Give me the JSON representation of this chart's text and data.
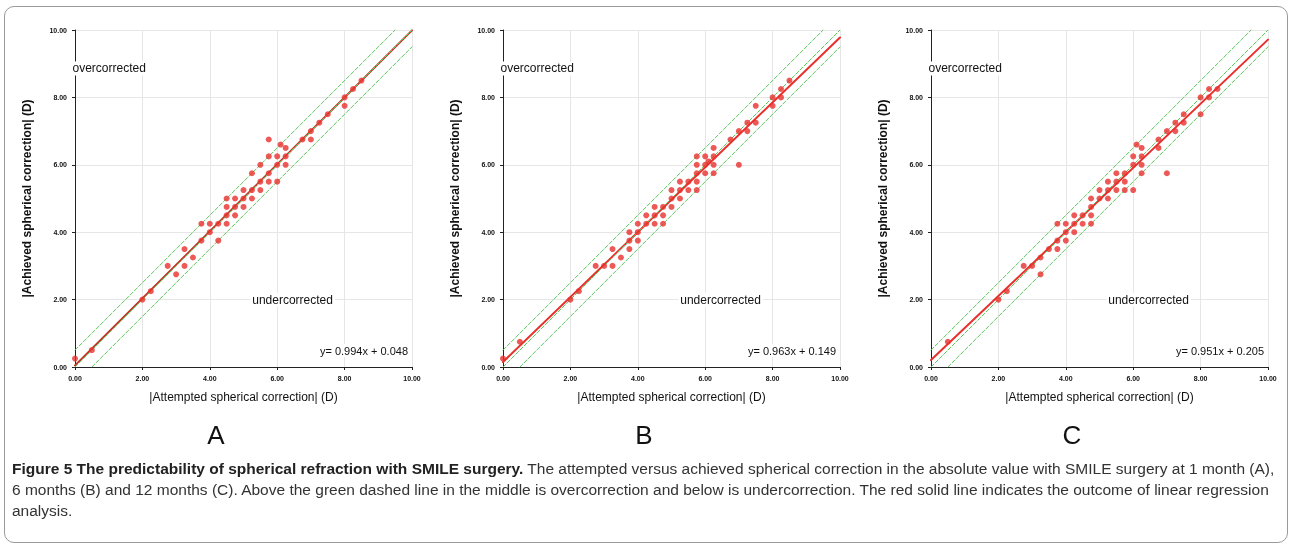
{
  "chart_data": [
    {
      "type": "scatter",
      "title": "A",
      "xlabel": "|Attempted spherical correction| (D)",
      "ylabel": "|Achieved spherical correction| (D)",
      "xlim": [
        0,
        10
      ],
      "ylim": [
        0,
        10
      ],
      "xticks": [
        {
          "value": 0,
          "label": "0.00"
        },
        {
          "value": 2,
          "label": "2.00"
        },
        {
          "value": 4,
          "label": "4.00"
        },
        {
          "value": 6,
          "label": "6.00"
        },
        {
          "value": 8,
          "label": "8.00"
        },
        {
          "value": 10,
          "label": "10.00"
        }
      ],
      "yticks": [
        {
          "value": 0,
          "label": "0.00"
        },
        {
          "value": 2,
          "label": "2.00"
        },
        {
          "value": 4,
          "label": "4.00"
        },
        {
          "value": 6,
          "label": "6.00"
        },
        {
          "value": 8,
          "label": "8.00"
        },
        {
          "value": 10,
          "label": "10.00"
        }
      ],
      "grid": true,
      "annotations": [
        "overcorrected",
        "undercorrected",
        "y= 0.994x + 0.048",
        "Figure 5 The predictability of spherical refraction with SMILE surgery.",
        "The attempted versus achieved spherical correction in the absolute value with SMILE surgery at 1 month (A), 6 months (B) and 12 months (C). Above the green dashed line in the middle is overcorrection and below is undercorrection. The red solid line indicates the outcome of linear regression analysis."
      ],
      "series": [
        {
          "type": "scatter",
          "marker": "circle",
          "color": "#e8302c",
          "x": [
            0,
            0.5,
            2,
            2.25,
            2.75,
            3,
            3.25,
            3.25,
            3.5,
            3.75,
            3.75,
            4,
            4,
            4.25,
            4.25,
            4.5,
            4.5,
            4.5,
            4.5,
            4.75,
            4.75,
            4.75,
            5,
            5,
            5,
            5.25,
            5.25,
            5.25,
            5.5,
            5.5,
            5.5,
            5.75,
            5.75,
            5.75,
            5.75,
            6,
            6,
            6,
            6.1,
            6.25,
            6.25,
            6.25,
            6.75,
            7,
            7,
            7.25,
            7.5,
            8,
            8,
            8.25,
            8.5
          ],
          "values": [
            0.25,
            0.5,
            2,
            2.25,
            3,
            2.75,
            3,
            3.5,
            3.25,
            3.75,
            4.25,
            4.25,
            4,
            3.75,
            4.25,
            4.25,
            4.5,
            4.75,
            5,
            4.5,
            4.75,
            5,
            4.75,
            5,
            5.25,
            5,
            5.25,
            5.75,
            5.25,
            5.5,
            6,
            5.5,
            5.75,
            6.25,
            6.75,
            5.5,
            6,
            6.25,
            6.6,
            6.5,
            6.25,
            6,
            6.75,
            6.75,
            7,
            7.25,
            7.5,
            8,
            7.75,
            8.25,
            8.5
          ]
        },
        {
          "type": "line",
          "marker": "none",
          "line_style": "solid",
          "color": "#c0392b",
          "x": [
            0,
            10
          ],
          "values": [
            0.048,
            9.988
          ]
        },
        {
          "type": "line",
          "marker": "none",
          "line_style": "dashed",
          "color": "#5cc85c",
          "x": [
            0,
            9.5
          ],
          "values": [
            0.5,
            10
          ]
        },
        {
          "type": "line",
          "marker": "none",
          "line_style": "dashed",
          "color": "#5cc85c",
          "x": [
            0,
            10
          ],
          "values": [
            0,
            10
          ]
        },
        {
          "type": "line",
          "marker": "none",
          "line_style": "dashed",
          "color": "#5cc85c",
          "x": [
            0.5,
            10
          ],
          "values": [
            0,
            9.5
          ]
        }
      ]
    },
    {
      "type": "scatter",
      "title": "B",
      "xlabel": "|Attempted spherical correction| (D)",
      "ylabel": "|Achieved spherical correction| (D)",
      "xlim": [
        0,
        10
      ],
      "ylim": [
        0,
        10
      ],
      "xticks": [
        {
          "value": 0,
          "label": "0.00"
        },
        {
          "value": 2,
          "label": "2.00"
        },
        {
          "value": 4,
          "label": "4.00"
        },
        {
          "value": 6,
          "label": "6.00"
        },
        {
          "value": 8,
          "label": "8.00"
        },
        {
          "value": 10,
          "label": "10.00"
        }
      ],
      "yticks": [
        {
          "value": 0,
          "label": "0.00"
        },
        {
          "value": 2,
          "label": "2.00"
        },
        {
          "value": 4,
          "label": "4.00"
        },
        {
          "value": 6,
          "label": "6.00"
        },
        {
          "value": 8,
          "label": "8.00"
        },
        {
          "value": 10,
          "label": "10.00"
        }
      ],
      "grid": true,
      "annotations": [
        "overcorrected",
        "undercorrected",
        "y= 0.963x + 0.149"
      ],
      "series": [
        {
          "type": "scatter",
          "marker": "circle",
          "color": "#e8302c",
          "x": [
            0,
            0.5,
            2,
            2.25,
            2.75,
            3,
            3.25,
            3.25,
            3.5,
            3.75,
            3.75,
            3.75,
            4,
            4,
            4,
            4.25,
            4.25,
            4.5,
            4.5,
            4.5,
            4.75,
            4.75,
            4.75,
            5,
            5,
            5,
            5.25,
            5.25,
            5.25,
            5.5,
            5.5,
            5.75,
            5.75,
            5.75,
            5.75,
            5.75,
            6,
            6,
            6,
            6.1,
            6.25,
            6.25,
            6.25,
            6.25,
            6.75,
            7,
            7,
            7.25,
            7.25,
            7.5,
            7.5,
            8,
            8,
            8.25,
            8.25,
            8.5
          ],
          "values": [
            0.25,
            0.75,
            2,
            2.25,
            3,
            3,
            3.5,
            3,
            3.25,
            4,
            3.75,
            3.5,
            4.25,
            4,
            3.75,
            4.5,
            4.25,
            4.75,
            4.5,
            4.25,
            4.75,
            4.5,
            4.25,
            5.25,
            5,
            4.75,
            5.5,
            5.25,
            5,
            5.5,
            5.25,
            6.25,
            6,
            5.75,
            5.5,
            5.25,
            6.25,
            6,
            5.75,
            6.1,
            6.5,
            6.25,
            6,
            5.75,
            6.75,
            7,
            6,
            7.25,
            7,
            7.75,
            7.25,
            8,
            7.75,
            8.25,
            8,
            8.5
          ]
        },
        {
          "type": "line",
          "marker": "none",
          "line_style": "solid",
          "color": "#e8302c",
          "x": [
            0,
            10
          ],
          "values": [
            0.149,
            9.779
          ]
        },
        {
          "type": "line",
          "marker": "none",
          "line_style": "dashed",
          "color": "#5cc85c",
          "x": [
            0,
            9.5
          ],
          "values": [
            0.5,
            10
          ]
        },
        {
          "type": "line",
          "marker": "none",
          "line_style": "dashed",
          "color": "#5cc85c",
          "x": [
            0,
            10
          ],
          "values": [
            0,
            10
          ]
        },
        {
          "type": "line",
          "marker": "none",
          "line_style": "dashed",
          "color": "#5cc85c",
          "x": [
            0.5,
            10
          ],
          "values": [
            0,
            9.5
          ]
        }
      ]
    },
    {
      "type": "scatter",
      "title": "C",
      "xlabel": "|Attempted spherical correction| (D)",
      "ylabel": "|Achieved spherical correction| (D)",
      "xlim": [
        0,
        10
      ],
      "ylim": [
        0,
        10
      ],
      "xticks": [
        {
          "value": 0,
          "label": "0.00"
        },
        {
          "value": 2,
          "label": "2.00"
        },
        {
          "value": 4,
          "label": "4.00"
        },
        {
          "value": 6,
          "label": "6.00"
        },
        {
          "value": 8,
          "label": "8.00"
        },
        {
          "value": 10,
          "label": "10.00"
        }
      ],
      "yticks": [
        {
          "value": 0,
          "label": "0.00"
        },
        {
          "value": 2,
          "label": "2.00"
        },
        {
          "value": 4,
          "label": "4.00"
        },
        {
          "value": 6,
          "label": "6.00"
        },
        {
          "value": 8,
          "label": "8.00"
        },
        {
          "value": 10,
          "label": "10.00"
        }
      ],
      "grid": true,
      "annotations": [
        "overcorrected",
        "undercorrected",
        "y= 0.951x + 0.205"
      ],
      "series": [
        {
          "type": "scatter",
          "marker": "circle",
          "color": "#e8302c",
          "x": [
            0.5,
            2,
            2.25,
            2.75,
            3,
            3.25,
            3.25,
            3.5,
            3.75,
            3.75,
            3.75,
            4,
            4,
            4,
            4.25,
            4.25,
            4.25,
            4.5,
            4.5,
            4.75,
            4.75,
            4.75,
            4.75,
            5,
            5,
            5.25,
            5.25,
            5.25,
            5.5,
            5.5,
            5.5,
            5.75,
            5.75,
            5.75,
            6,
            6,
            6,
            6.1,
            6.25,
            6.25,
            6.25,
            6.25,
            6.75,
            6.75,
            7,
            7,
            7.25,
            7.25,
            7.5,
            7.5,
            8,
            8,
            8.25,
            8.25,
            8.5
          ],
          "values": [
            0.75,
            2,
            2.25,
            3,
            3,
            2.75,
            3.25,
            3.5,
            4.25,
            3.75,
            3.5,
            4.25,
            4,
            3.75,
            4.5,
            4.25,
            4,
            4.5,
            4.25,
            5,
            4.75,
            4.5,
            4.25,
            5.25,
            5,
            5.5,
            5.25,
            5,
            5.75,
            5.5,
            5.25,
            5.75,
            5.5,
            5.25,
            6.25,
            6,
            5.25,
            6.6,
            6.5,
            6.25,
            6,
            5.75,
            6.75,
            6.5,
            7,
            5.75,
            7.25,
            7,
            7.5,
            7.25,
            8,
            7.5,
            8.25,
            8,
            8.25
          ]
        },
        {
          "type": "line",
          "marker": "none",
          "line_style": "solid",
          "color": "#e8302c",
          "x": [
            0,
            10
          ],
          "values": [
            0.205,
            9.715
          ]
        },
        {
          "type": "line",
          "marker": "none",
          "line_style": "dashed",
          "color": "#5cc85c",
          "x": [
            0,
            9.5
          ],
          "values": [
            0.5,
            10
          ]
        },
        {
          "type": "line",
          "marker": "none",
          "line_style": "dashed",
          "color": "#5cc85c",
          "x": [
            0,
            10
          ],
          "values": [
            0,
            10
          ]
        },
        {
          "type": "line",
          "marker": "none",
          "line_style": "dashed",
          "color": "#5cc85c",
          "x": [
            0.5,
            10
          ],
          "values": [
            0,
            9.5
          ]
        }
      ]
    }
  ]
}
